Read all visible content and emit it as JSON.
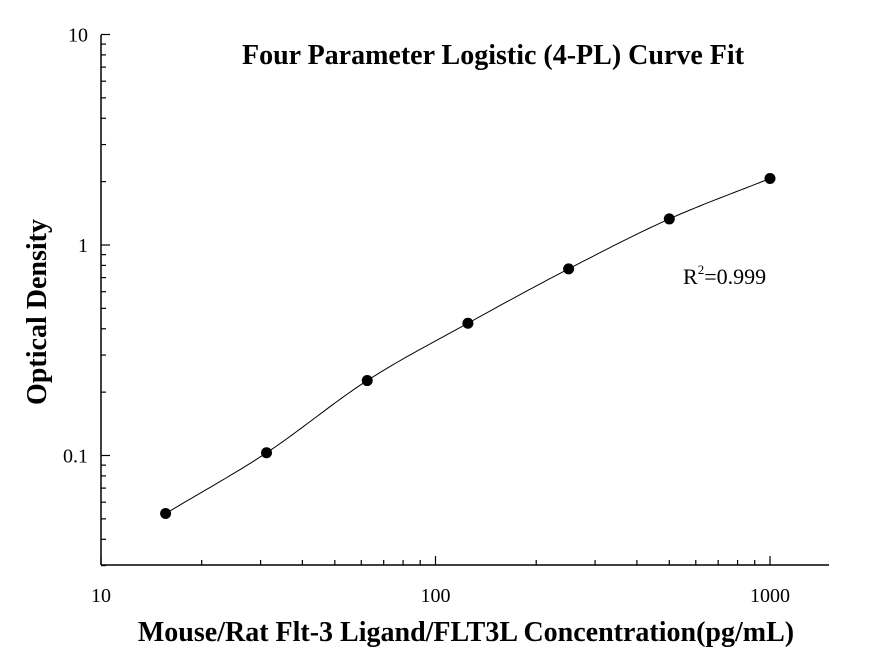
{
  "chart_data": {
    "type": "scatter",
    "title": "Four Parameter Logistic (4-PL) Curve Fit",
    "xlabel": "Mouse/Rat Flt-3 Ligand/FLT3L Concentration(pg/mL)",
    "ylabel": "Optical Density",
    "x_scale": "log",
    "y_scale": "log",
    "xlim": [
      10,
      1500
    ],
    "ylim": [
      0.03,
      10
    ],
    "x_ticks": [
      "10",
      "100",
      "1000"
    ],
    "y_ticks": [
      "10",
      "1",
      "0.1"
    ],
    "grid": false,
    "series": [
      {
        "x": [
          15.6,
          31.25,
          62.5,
          125,
          250,
          500,
          1000
        ],
        "y": [
          0.053,
          0.103,
          0.227,
          0.425,
          0.77,
          1.33,
          2.07
        ]
      }
    ],
    "fit_curve": {
      "type": "4-PL",
      "r2_label": "R",
      "r2_sup": "2",
      "r2_value": "=0.999"
    }
  }
}
